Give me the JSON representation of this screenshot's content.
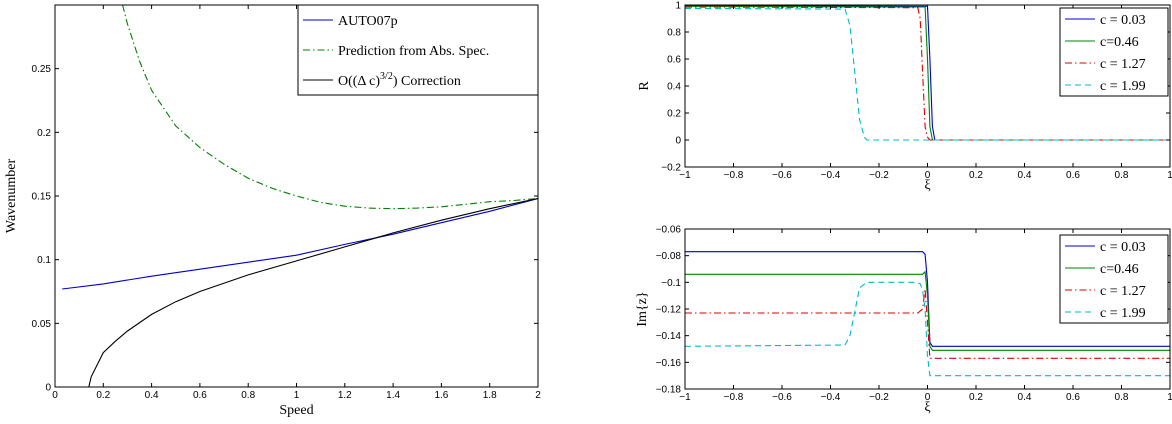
{
  "chart_data": [
    {
      "type": "line",
      "xlabel": "Speed",
      "ylabel": "Wavenumber",
      "xlim": [
        0,
        2
      ],
      "ylim": [
        0,
        0.3
      ],
      "xticks": [
        "0",
        "0.2",
        "0.4",
        "0.6",
        "0.8",
        "1",
        "1.2",
        "1.4",
        "1.6",
        "1.8",
        "2"
      ],
      "yticks": [
        "0",
        "0.05",
        "0.1",
        "0.15",
        "0.2",
        "0.25"
      ],
      "grid": false,
      "legend_position": "top-right",
      "series": [
        {
          "name": "AUTO07p",
          "color": "#0000cc",
          "dash": "solid",
          "x": [
            0.03,
            0.2,
            0.4,
            0.6,
            0.8,
            1.0,
            1.2,
            1.4,
            1.6,
            1.8,
            2.0
          ],
          "y": [
            0.077,
            0.081,
            0.087,
            0.0925,
            0.098,
            0.1035,
            0.112,
            0.12,
            0.129,
            0.138,
            0.148
          ]
        },
        {
          "name": "Prediction from Abs. Spec.",
          "color": "#008000",
          "dash": "dashdot",
          "x": [
            0.28,
            0.3,
            0.35,
            0.4,
            0.5,
            0.6,
            0.7,
            0.8,
            0.9,
            1.0,
            1.1,
            1.2,
            1.3,
            1.4,
            1.5,
            1.6,
            1.7,
            1.8,
            1.9,
            2.0
          ],
          "y": [
            0.3,
            0.285,
            0.256,
            0.233,
            0.205,
            0.188,
            0.175,
            0.164,
            0.156,
            0.15,
            0.145,
            0.142,
            0.1405,
            0.14,
            0.1405,
            0.1415,
            0.1435,
            0.1455,
            0.1465,
            0.148
          ]
        },
        {
          "name": "O((Δ c)^3/2) Correction",
          "color": "#000000",
          "dash": "solid",
          "x": [
            0.14,
            0.15,
            0.2,
            0.25,
            0.3,
            0.4,
            0.5,
            0.6,
            0.8,
            1.0,
            1.2,
            1.4,
            1.6,
            1.8,
            2.0
          ],
          "y": [
            0.0,
            0.008,
            0.027,
            0.036,
            0.044,
            0.057,
            0.067,
            0.075,
            0.088,
            0.099,
            0.11,
            0.121,
            0.131,
            0.14,
            0.148
          ]
        }
      ],
      "legend": {
        "entries": [
          {
            "text": "AUTO07p"
          },
          {
            "text": "Prediction from Abs. Spec."
          },
          {
            "text_main": "O((Δ c)",
            "text_sup": "3/2",
            "text_tail": ") Correction"
          }
        ]
      }
    },
    {
      "type": "line",
      "xlabel": "ξ",
      "ylabel": "R",
      "xlim": [
        -1,
        1
      ],
      "ylim": [
        -0.2,
        1
      ],
      "xticks": [
        "−1",
        "−0.8",
        "−0.6",
        "−0.4",
        "−0.2",
        "0",
        "0.2",
        "0.4",
        "0.6",
        "0.8",
        "1"
      ],
      "yticks": [
        "−0.2",
        "0",
        "0.2",
        "0.4",
        "0.6",
        "0.8",
        "1"
      ],
      "grid": false,
      "legend_position": "top-right",
      "series": [
        {
          "name": "c = 0.03",
          "color": "#0000cc",
          "dash": "solid",
          "x": [
            -1,
            0.0,
            0.01,
            0.02,
            0.03,
            1
          ],
          "y": [
            0.995,
            0.99,
            0.6,
            0.1,
            0.0,
            0.0
          ]
        },
        {
          "name": "c=0.46",
          "color": "#008000",
          "dash": "solid",
          "x": [
            -1,
            -0.01,
            0.0,
            0.01,
            0.02,
            1
          ],
          "y": [
            0.99,
            0.985,
            0.6,
            0.1,
            0.0,
            0.0
          ]
        },
        {
          "name": "c = 1.27",
          "color": "#dd0000",
          "dash": "dashdot",
          "x": [
            -1,
            -0.04,
            -0.03,
            -0.02,
            -0.01,
            0.0,
            0.01,
            1
          ],
          "y": [
            0.985,
            0.98,
            0.9,
            0.5,
            0.1,
            0.02,
            0.0,
            0.0
          ]
        },
        {
          "name": "c = 1.99",
          "color": "#00bbcc",
          "dash": "dashed",
          "x": [
            -1,
            -0.34,
            -0.32,
            -0.3,
            -0.28,
            -0.26,
            -0.25,
            1
          ],
          "y": [
            0.975,
            0.97,
            0.85,
            0.5,
            0.15,
            0.02,
            0.0,
            0.0
          ]
        }
      ]
    },
    {
      "type": "line",
      "xlabel": "ξ",
      "ylabel": "Im{z}",
      "xlim": [
        -1,
        1
      ],
      "ylim": [
        -0.18,
        -0.06
      ],
      "xticks": [
        "−1",
        "−0.8",
        "−0.6",
        "−0.4",
        "−0.2",
        "0",
        "0.2",
        "0.4",
        "0.6",
        "0.8",
        "1"
      ],
      "yticks": [
        "−0.18",
        "−0.16",
        "−0.14",
        "−0.12",
        "−0.1",
        "−0.08",
        "−0.06"
      ],
      "grid": false,
      "legend_position": "top-right",
      "series": [
        {
          "name": "c = 0.03",
          "color": "#0000cc",
          "dash": "solid",
          "x": [
            -1,
            -0.02,
            -0.01,
            0.0,
            0.01,
            0.02,
            1
          ],
          "y": [
            -0.077,
            -0.077,
            -0.079,
            -0.1,
            -0.145,
            -0.148,
            -0.148
          ]
        },
        {
          "name": "c=0.46",
          "color": "#008000",
          "dash": "solid",
          "x": [
            -1,
            -0.02,
            -0.01,
            0.0,
            0.01,
            0.02,
            1
          ],
          "y": [
            -0.094,
            -0.094,
            -0.092,
            -0.11,
            -0.148,
            -0.151,
            -0.151
          ]
        },
        {
          "name": "c = 1.27",
          "color": "#dd0000",
          "dash": "dashdot",
          "x": [
            -1,
            -0.04,
            -0.02,
            -0.01,
            0.0,
            0.01,
            1
          ],
          "y": [
            -0.123,
            -0.123,
            -0.12,
            -0.105,
            -0.13,
            -0.157,
            -0.157
          ]
        },
        {
          "name": "c = 1.99",
          "color": "#00bbcc",
          "dash": "dashed",
          "x": [
            -1,
            -0.34,
            -0.32,
            -0.3,
            -0.28,
            -0.25,
            -0.2,
            -0.05,
            -0.03,
            -0.02,
            -0.01,
            0.0,
            0.01,
            1
          ],
          "y": [
            -0.148,
            -0.147,
            -0.14,
            -0.122,
            -0.104,
            -0.1,
            -0.1,
            -0.1,
            -0.101,
            -0.106,
            -0.12,
            -0.155,
            -0.17,
            -0.17
          ]
        }
      ]
    }
  ]
}
